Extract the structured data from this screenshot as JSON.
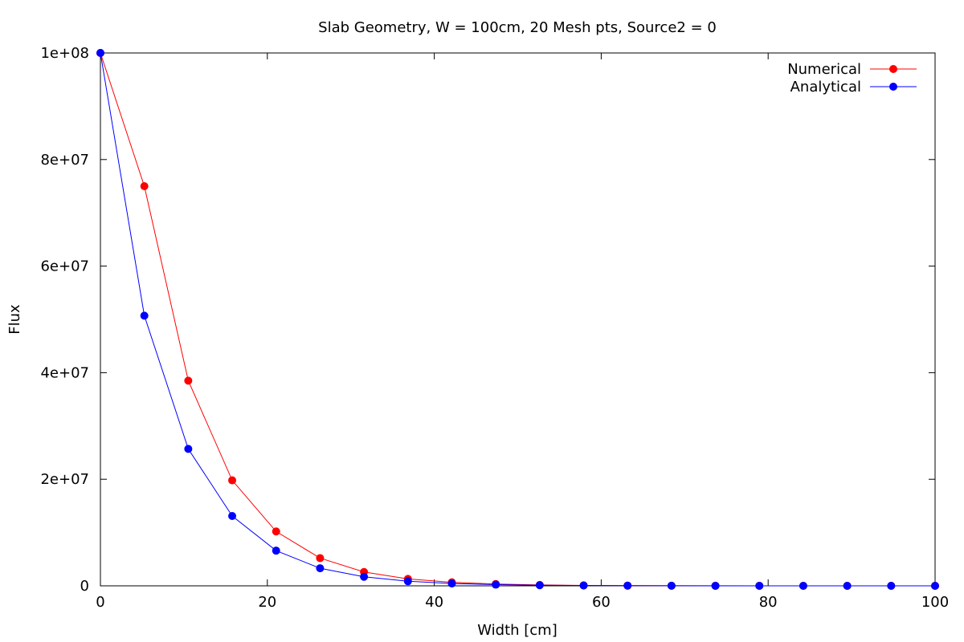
{
  "chart_data": {
    "type": "line",
    "title": "Slab Geometry, W = 100cm, 20 Mesh pts, Source2 = 0",
    "xlabel": "Width [cm]",
    "ylabel": "Flux",
    "xlim": [
      0,
      100
    ],
    "ylim": [
      0,
      100000000
    ],
    "x_ticks": [
      0,
      20,
      40,
      60,
      80,
      100
    ],
    "x_tick_labels": [
      "0",
      "20",
      "40",
      "60",
      "80",
      "100"
    ],
    "y_ticks": [
      0,
      20000000,
      40000000,
      60000000,
      80000000,
      100000000
    ],
    "y_tick_labels": [
      "0",
      "2e+07",
      "4e+07",
      "6e+07",
      "8e+07",
      "1e+08"
    ],
    "grid": false,
    "legend_position": "top-right",
    "x": [
      0,
      5.263,
      10.526,
      15.789,
      21.053,
      26.316,
      31.579,
      36.842,
      42.105,
      47.368,
      52.632,
      57.895,
      63.158,
      68.421,
      73.684,
      78.947,
      84.211,
      89.474,
      94.737,
      100
    ],
    "series": [
      {
        "name": "Numerical",
        "color": "#ff0000",
        "values": [
          100000000,
          75000000,
          38500000,
          19800000,
          10200000,
          5200000,
          2600000,
          1300000,
          660000,
          330000,
          170000,
          85000,
          43000,
          22000,
          11000,
          5500,
          2800,
          1400,
          700,
          0
        ]
      },
      {
        "name": "Analytical",
        "color": "#0000ff",
        "values": [
          100000000,
          50700000,
          25700000,
          13100000,
          6600000,
          3300000,
          1700000,
          860000,
          440000,
          220000,
          110000,
          57000,
          29000,
          15000,
          7500,
          3800,
          1900,
          950,
          480,
          0
        ]
      }
    ]
  }
}
